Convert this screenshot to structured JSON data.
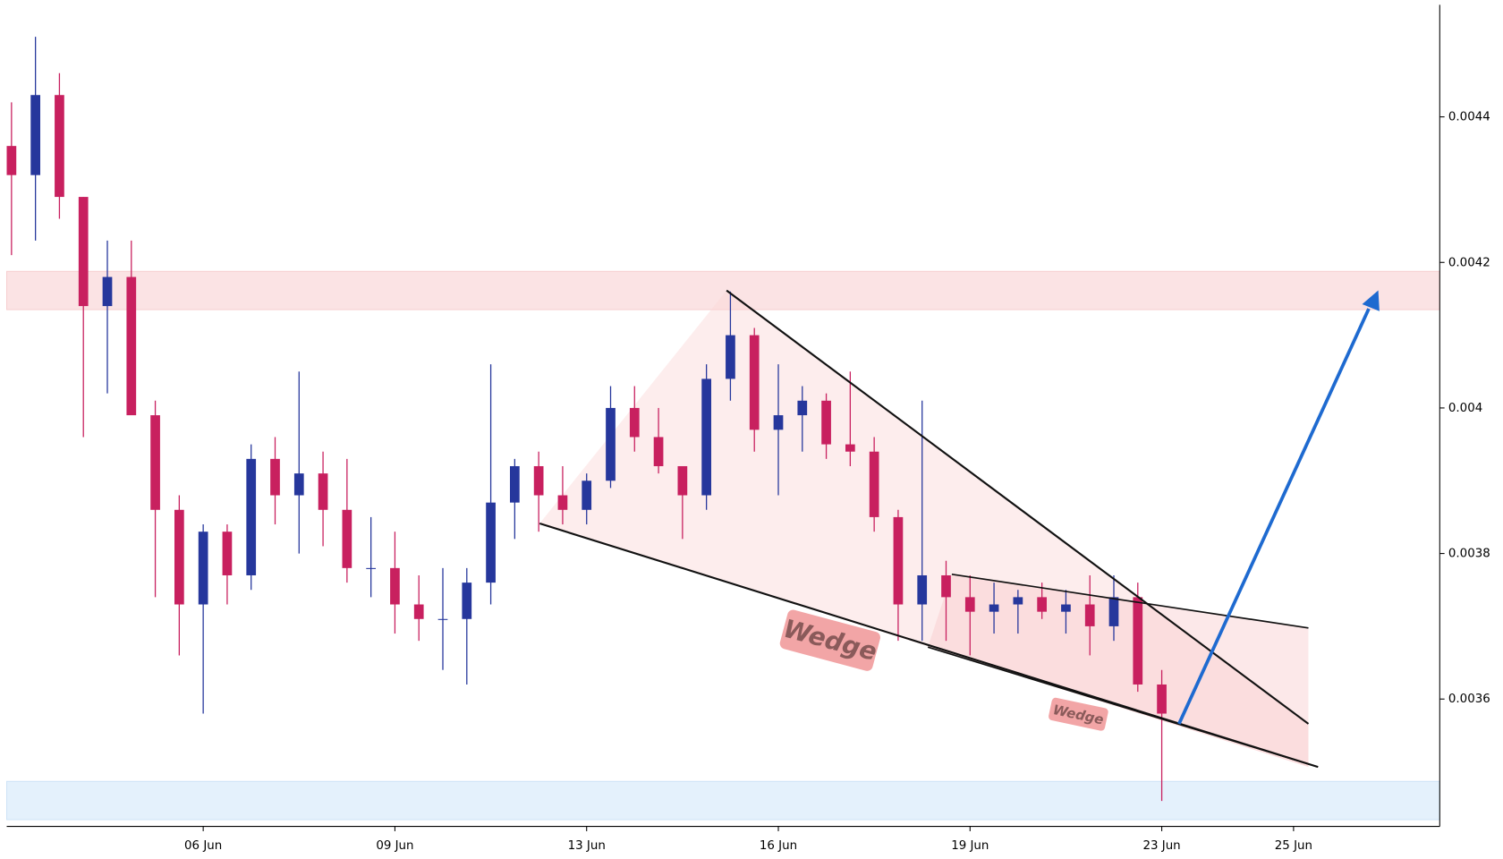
{
  "chart_data": {
    "type": "candlestick",
    "x": [
      0,
      1,
      2,
      3,
      4,
      5,
      6,
      7,
      8,
      9,
      10,
      11,
      12,
      13,
      14,
      15,
      16,
      17,
      18,
      19,
      20,
      21,
      22,
      23,
      24,
      25,
      26,
      27,
      28,
      29,
      30,
      31,
      32,
      33,
      34,
      35,
      36,
      37,
      38,
      39,
      40,
      41,
      42,
      43,
      44,
      45,
      46,
      47,
      48
    ],
    "open": [
      0.00436,
      0.00432,
      0.00443,
      0.00429,
      0.00414,
      0.00418,
      0.00399,
      0.00386,
      0.00373,
      0.00383,
      0.00377,
      0.00393,
      0.00388,
      0.00391,
      0.00386,
      0.00378,
      0.00378,
      0.00373,
      0.00371,
      0.00371,
      0.00376,
      0.00387,
      0.00392,
      0.00388,
      0.00386,
      0.0039,
      0.004,
      0.00396,
      0.00392,
      0.00388,
      0.00404,
      0.0041,
      0.00397,
      0.00399,
      0.00401,
      0.00395,
      0.00394,
      0.00385,
      0.00373,
      0.00377,
      0.00374,
      0.00372,
      0.00373,
      0.00374,
      0.00372,
      0.00373,
      0.0037,
      0.00374,
      0.00362
    ],
    "high": [
      0.00442,
      0.00451,
      0.00446,
      0.00429,
      0.00423,
      0.00423,
      0.00401,
      0.00388,
      0.00384,
      0.00384,
      0.00395,
      0.00396,
      0.00405,
      0.00394,
      0.00393,
      0.00385,
      0.00383,
      0.00377,
      0.00378,
      0.00378,
      0.00406,
      0.00393,
      0.00394,
      0.00392,
      0.00391,
      0.00403,
      0.00403,
      0.004,
      0.00392,
      0.00406,
      0.00416,
      0.00411,
      0.00406,
      0.00403,
      0.00402,
      0.00405,
      0.00396,
      0.00386,
      0.00401,
      0.00379,
      0.00377,
      0.00376,
      0.00375,
      0.00376,
      0.00375,
      0.00377,
      0.00377,
      0.00376,
      0.00364
    ],
    "low": [
      0.00421,
      0.00423,
      0.00426,
      0.00396,
      0.00402,
      0.004,
      0.00374,
      0.00366,
      0.00358,
      0.00373,
      0.00375,
      0.00384,
      0.0038,
      0.00381,
      0.00376,
      0.00374,
      0.00369,
      0.00368,
      0.00364,
      0.00362,
      0.00373,
      0.00382,
      0.00383,
      0.00384,
      0.00384,
      0.00389,
      0.00394,
      0.00391,
      0.00382,
      0.00386,
      0.00401,
      0.00394,
      0.00388,
      0.00394,
      0.00393,
      0.00392,
      0.00383,
      0.00368,
      0.00368,
      0.00368,
      0.00366,
      0.00369,
      0.00369,
      0.00371,
      0.00369,
      0.00366,
      0.00368,
      0.00361,
      0.00346
    ],
    "close": [
      0.00432,
      0.00443,
      0.00429,
      0.00414,
      0.00418,
      0.00399,
      0.00386,
      0.00373,
      0.00383,
      0.00377,
      0.00393,
      0.00388,
      0.00391,
      0.00386,
      0.00378,
      0.00378,
      0.00373,
      0.00371,
      0.00371,
      0.00376,
      0.00387,
      0.00392,
      0.00388,
      0.00386,
      0.0039,
      0.004,
      0.00396,
      0.00392,
      0.00388,
      0.00404,
      0.0041,
      0.00397,
      0.00399,
      0.00401,
      0.00395,
      0.00394,
      0.00385,
      0.00373,
      0.00377,
      0.00374,
      0.00372,
      0.00373,
      0.00374,
      0.00372,
      0.00373,
      0.0037,
      0.00374,
      0.00362,
      0.00358
    ],
    "up_color": "#26379c",
    "down_color": "#c8205f",
    "xlim": [
      -0.2,
      59.6
    ],
    "xticks": [
      {
        "value": 8,
        "label": "06 Jun"
      },
      {
        "value": 16,
        "label": "09 Jun"
      },
      {
        "value": 24,
        "label": "13 Jun"
      },
      {
        "value": 32,
        "label": "16 Jun"
      },
      {
        "value": 40,
        "label": "19 Jun"
      },
      {
        "value": 48,
        "label": "23 Jun"
      },
      {
        "value": 53.5,
        "label": "25 Jun"
      }
    ],
    "ylim": [
      0.003425,
      0.004554
    ],
    "yticks": [
      0.0036,
      0.0038,
      0.004,
      0.0042,
      0.0044
    ],
    "annotations": [
      "Wedge",
      "Wedge"
    ]
  }
}
